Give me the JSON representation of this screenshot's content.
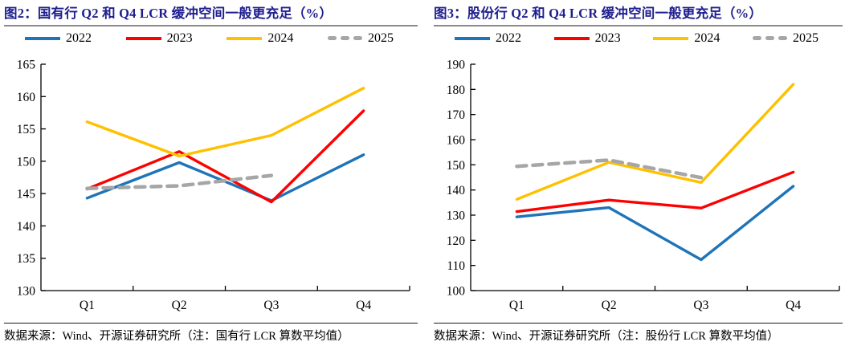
{
  "page": {
    "background": "#ffffff",
    "title_color": "#1E1E8F",
    "axis_color": "#000000",
    "title_rule_color": "#8a8a8a",
    "source_rule_color": "#1a1a1a"
  },
  "chart_data": [
    {
      "type": "line",
      "title": "图2：国有行 Q2 和 Q4 LCR 缓冲空间一般更充足（%）",
      "categories": [
        "Q1",
        "Q2",
        "Q3",
        "Q4"
      ],
      "series": [
        {
          "name": "2022",
          "color": "#1F74B8",
          "style": "solid",
          "values": [
            144.3,
            149.8,
            143.9,
            151.0
          ]
        },
        {
          "name": "2023",
          "color": "#FF0000",
          "style": "solid",
          "values": [
            145.7,
            151.5,
            143.7,
            157.8
          ]
        },
        {
          "name": "2024",
          "color": "#FFC000",
          "style": "solid",
          "values": [
            156.1,
            150.8,
            154.0,
            161.3
          ]
        },
        {
          "name": "2025",
          "color": "#A6A6A6",
          "style": "dashed",
          "values": [
            145.8,
            146.2,
            147.8,
            null
          ]
        }
      ],
      "ylim": [
        130,
        165
      ],
      "ytick_step": 5,
      "grid": false,
      "legend_position": "top",
      "xlabel": "",
      "ylabel": "",
      "source": "数据来源：Wind、开源证券研究所（注：国有行 LCR 算数平均值）"
    },
    {
      "type": "line",
      "title": "图3：股份行 Q2 和 Q4 LCR 缓冲空间一般更充足（%）",
      "categories": [
        "Q1",
        "Q2",
        "Q3",
        "Q4"
      ],
      "series": [
        {
          "name": "2022",
          "color": "#1F74B8",
          "style": "solid",
          "values": [
            129.3,
            133.0,
            112.3,
            141.5
          ]
        },
        {
          "name": "2023",
          "color": "#FF0000",
          "style": "solid",
          "values": [
            131.4,
            136.0,
            132.8,
            147.1
          ]
        },
        {
          "name": "2024",
          "color": "#FFC000",
          "style": "solid",
          "values": [
            136.3,
            151.0,
            143.0,
            182.0
          ]
        },
        {
          "name": "2025",
          "color": "#A6A6A6",
          "style": "dashed",
          "values": [
            149.4,
            151.9,
            144.9,
            null
          ]
        }
      ],
      "ylim": [
        100,
        190
      ],
      "ytick_step": 10,
      "grid": false,
      "legend_position": "top",
      "xlabel": "",
      "ylabel": "",
      "source": "数据来源：Wind、开源证券研究所（注：股份行 LCR 算数平均值）"
    }
  ]
}
